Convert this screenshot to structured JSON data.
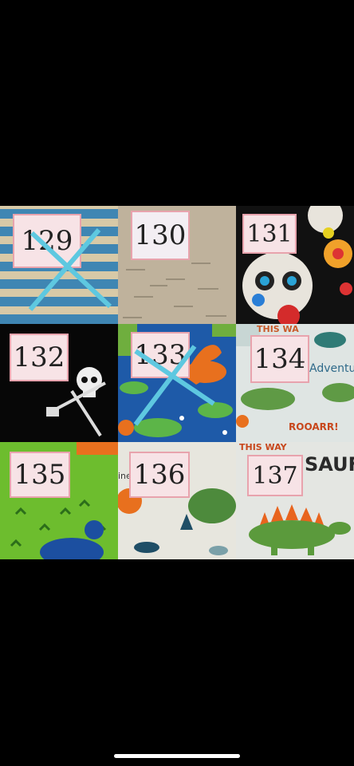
{
  "swatches": [
    {
      "number": "129",
      "crossed_out": true
    },
    {
      "number": "130",
      "crossed_out": false
    },
    {
      "number": "131",
      "crossed_out": false
    },
    {
      "number": "132",
      "crossed_out": false
    },
    {
      "number": "133",
      "crossed_out": true
    },
    {
      "number": "134",
      "crossed_out": false
    },
    {
      "number": "135",
      "crossed_out": false
    },
    {
      "number": "136",
      "crossed_out": false
    },
    {
      "number": "137",
      "crossed_out": false
    }
  ],
  "fabric_text": {
    "t134_a": "Adventu",
    "t134_b": "ROOARR!",
    "t134_c": "THIS WA",
    "t136_a": "ine",
    "t137_a": "SAUF",
    "t137_b": "THIS WAY"
  },
  "colors": {
    "label_bg": "#f7e3e6",
    "label_border": "#e8a3ad",
    "cross": "#5ec8e0",
    "background": "#000000"
  }
}
